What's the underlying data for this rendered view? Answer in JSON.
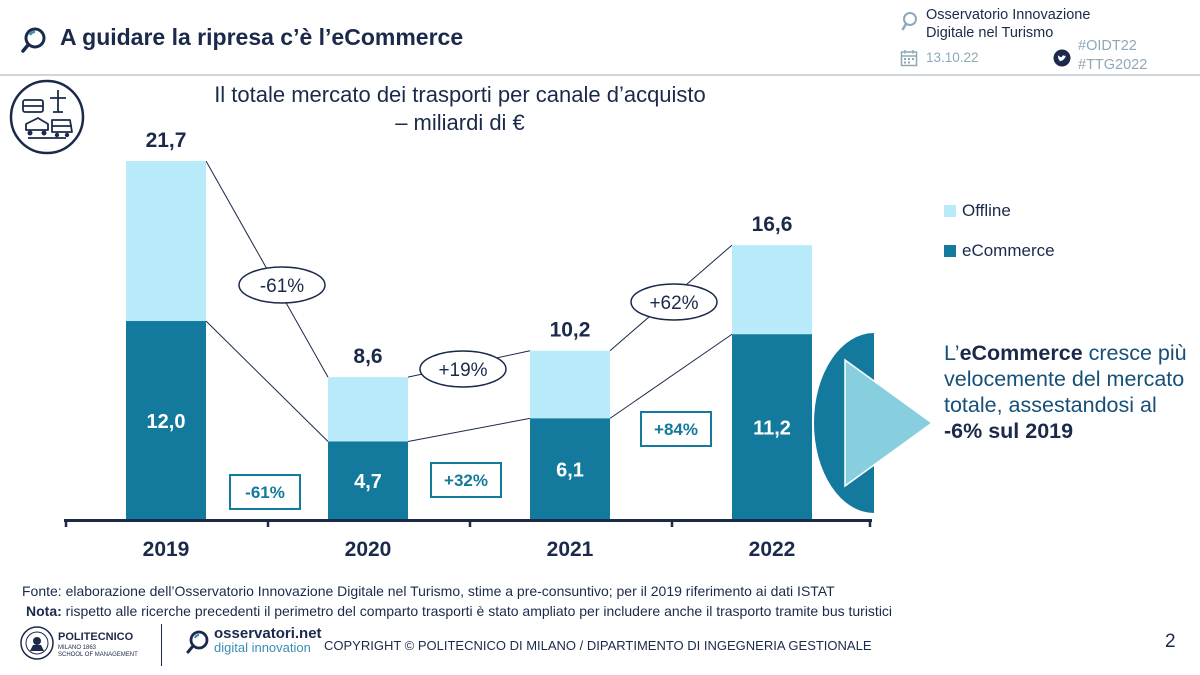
{
  "header": {
    "title": "A guidare la ripresa c’è l’eCommerce",
    "org_line1": "Osservatorio Innovazione",
    "org_line2": "Digitale nel Turismo",
    "date": "13.10.22",
    "hashtag1": "#OIDT22",
    "hashtag2": "#TTG2022"
  },
  "colors": {
    "offline": "#b9eaf9",
    "ecommerce": "#147a9d",
    "navy": "#1b2a4a",
    "triangle": "#87cfdf"
  },
  "chart_data": {
    "type": "bar",
    "stacked": true,
    "title_line1": "Il totale mercato dei trasporti per canale d’acquisto",
    "title_line2": "– miliardi di €",
    "categories": [
      "2019",
      "2020",
      "2021",
      "2022"
    ],
    "series": [
      {
        "name": "eCommerce",
        "values": [
          12.0,
          4.7,
          6.1,
          11.2
        ],
        "labels": [
          "12,0",
          "4,7",
          "6,1",
          "11,2"
        ]
      },
      {
        "name": "Offline",
        "values": [
          9.7,
          3.9,
          4.1,
          5.4
        ]
      }
    ],
    "totals": [
      21.7,
      8.6,
      10.2,
      16.6
    ],
    "total_labels": [
      "21,7",
      "8,6",
      "10,2",
      "16,6"
    ],
    "ylim": [
      0,
      21.7
    ],
    "legend": [
      "Offline",
      "eCommerce"
    ],
    "legend_position": "right",
    "growth_total": [
      "-61%",
      "+19%",
      "+62%"
    ],
    "growth_ecommerce": [
      "-61%",
      "+32%",
      "+84%"
    ]
  },
  "callout": {
    "p1": "L’",
    "b1": "eCommerce",
    "p2": " cresce più velocemente del mercato totale, assestandosi al ",
    "b2": "-6% sul 2019"
  },
  "footer": {
    "source": "Fonte: elaborazione dell’Osservatorio Innovazione Digitale nel Turismo, stime a pre-consuntivo; per il 2019 riferimento ai dati ISTAT",
    "note_label": "Nota:",
    "note_text": " rispetto alle ricerche precedenti il perimetro del comparto trasporti è stato ampliato per includere anche il trasporto tramite bus turistici",
    "polimi_name": "POLITECNICO",
    "polimi_sub1": "MILANO 1863",
    "polimi_sub2": "SCHOOL OF MANAGEMENT",
    "obs_brand1": "osservatori.net",
    "obs_brand2": "digital innovation",
    "copyright": "COPYRIGHT © POLITECNICO DI MILANO / DIPARTIMENTO DI INGEGNERIA GESTIONALE",
    "page": "2"
  }
}
